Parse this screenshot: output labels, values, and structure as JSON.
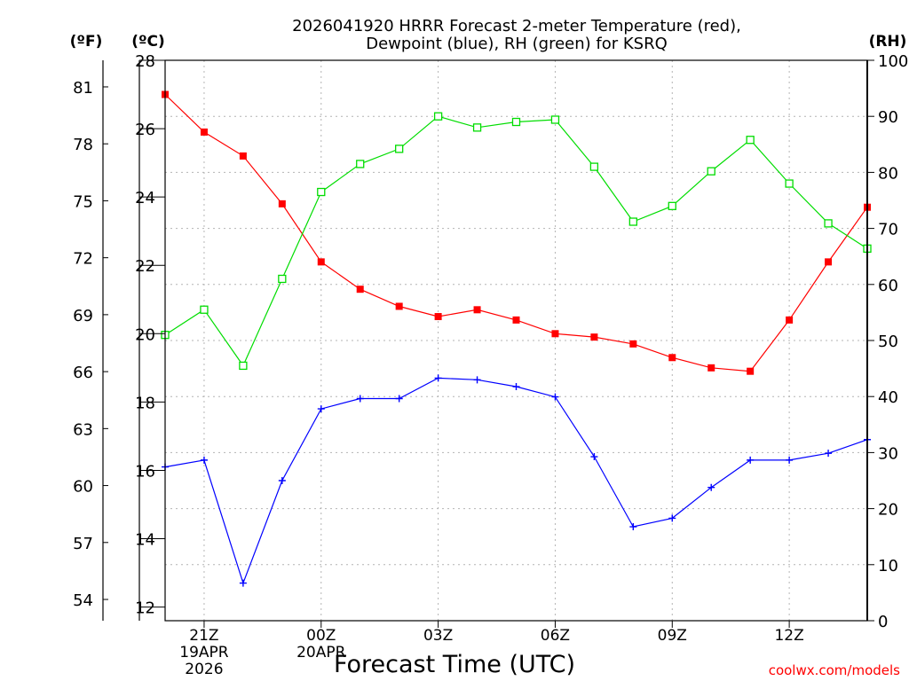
{
  "chart_data": {
    "type": "line",
    "title_line1": "2026041920 HRRR Forecast 2-meter Temperature (red),",
    "title_line2": "Dewpoint (blue), RH (green) for KSRQ",
    "xlabel": "Forecast Time (UTC)",
    "credit": "coolwx.com/models",
    "left_outer_axis_label": "(ºF)",
    "left_inner_axis_label": "(ºC)",
    "right_axis_label": "(RH)",
    "x": [
      0,
      1,
      2,
      3,
      4,
      5,
      6,
      7,
      8,
      9,
      10,
      11,
      12,
      13,
      14,
      15,
      16,
      17,
      18
    ],
    "x_ticks": [
      {
        "x": 1,
        "label": "21Z",
        "sub1": "19APR",
        "sub2": "2026"
      },
      {
        "x": 4,
        "label": "00Z",
        "sub1": "20APR",
        "sub2": ""
      },
      {
        "x": 7,
        "label": "03Z",
        "sub1": "",
        "sub2": ""
      },
      {
        "x": 10,
        "label": "06Z",
        "sub1": "",
        "sub2": ""
      },
      {
        "x": 13,
        "label": "09Z",
        "sub1": "",
        "sub2": ""
      },
      {
        "x": 16,
        "label": "12Z",
        "sub1": "",
        "sub2": ""
      }
    ],
    "ylim_c": [
      11.6,
      28
    ],
    "y_ticks_c": [
      12,
      14,
      16,
      18,
      20,
      22,
      24,
      26,
      28
    ],
    "y_ticks_f": [
      54,
      57,
      60,
      63,
      66,
      69,
      72,
      75,
      78,
      81
    ],
    "ylim_rh": [
      0,
      100
    ],
    "y_ticks_rh": [
      0,
      10,
      20,
      30,
      40,
      50,
      60,
      70,
      80,
      90,
      100
    ],
    "series": [
      {
        "name": "Temperature",
        "unit": "C",
        "color": "#ff0000",
        "marker": "filled-square",
        "values": [
          27.0,
          25.9,
          25.2,
          23.8,
          22.1,
          21.3,
          20.8,
          20.5,
          20.7,
          20.4,
          20.0,
          19.9,
          19.7,
          19.3,
          19.0,
          18.9,
          20.4,
          22.1,
          23.7
        ]
      },
      {
        "name": "Dewpoint",
        "unit": "C",
        "color": "#0000ff",
        "marker": "plus",
        "values": [
          16.1,
          16.3,
          12.7,
          15.7,
          17.8,
          18.1,
          18.1,
          18.7,
          18.65,
          18.45,
          18.15,
          16.4,
          14.35,
          14.6,
          15.5,
          16.3,
          16.3,
          16.5,
          16.9
        ]
      },
      {
        "name": "RH",
        "unit": "%",
        "color": "#00dd00",
        "marker": "open-square",
        "values": [
          51,
          55.5,
          45.5,
          61,
          76.5,
          81.5,
          84.2,
          90,
          88,
          89,
          89.4,
          81,
          71.2,
          74,
          80.2,
          85.8,
          78,
          70.9,
          66.4
        ]
      }
    ]
  }
}
